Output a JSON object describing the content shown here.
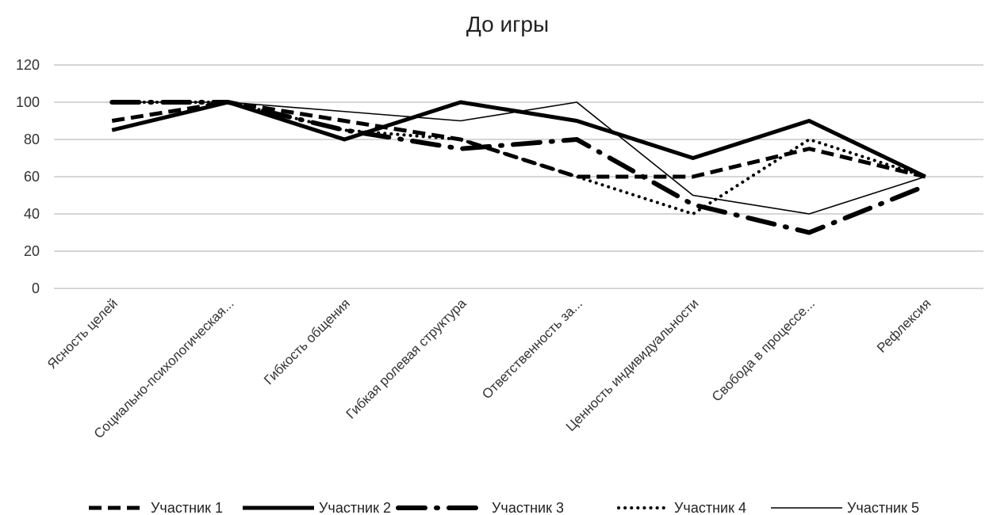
{
  "chart_data": {
    "type": "line",
    "title": "До игры",
    "xlabel": "",
    "ylabel": "",
    "ylim": [
      0,
      120
    ],
    "yticks": [
      0,
      20,
      40,
      60,
      80,
      100,
      120
    ],
    "grid": true,
    "legend_position": "bottom",
    "categories": [
      "Ясность целей",
      "Социально-психологическая...",
      "Гибкость общения",
      "Гибкая ролевая структура",
      "Ответственность за...",
      "Ценность индивидуальности",
      "Свобода в процессе...",
      "Рефлексия"
    ],
    "series": [
      {
        "name": "Участник 1",
        "values": [
          90,
          100,
          90,
          80,
          60,
          60,
          75,
          60
        ],
        "style": "dashed-thick",
        "color": "#000000"
      },
      {
        "name": "Участник 2",
        "values": [
          85,
          100,
          80,
          100,
          90,
          70,
          90,
          60
        ],
        "style": "solid-thick",
        "color": "#000000"
      },
      {
        "name": "Участник 3",
        "values": [
          100,
          100,
          85,
          75,
          80,
          45,
          30,
          55
        ],
        "style": "dashdot-thick",
        "color": "#000000"
      },
      {
        "name": "Участник 4",
        "values": [
          100,
          100,
          85,
          80,
          60,
          40,
          80,
          60
        ],
        "style": "dotted",
        "color": "#000000"
      },
      {
        "name": "Участник 5",
        "values": [
          100,
          100,
          95,
          90,
          100,
          50,
          40,
          60
        ],
        "style": "solid-thin",
        "color": "#000000"
      }
    ]
  }
}
